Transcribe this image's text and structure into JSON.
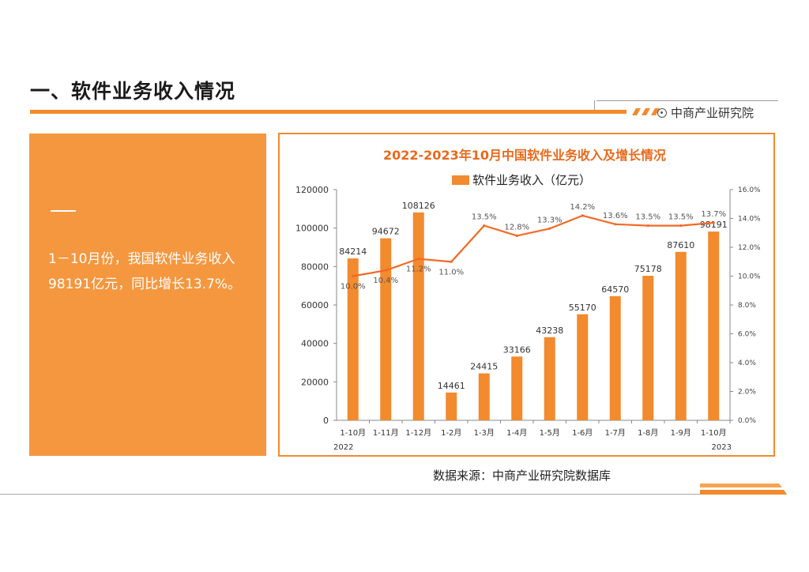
{
  "header": {
    "section_title": "一、软件业务收入情况",
    "brand_name": "中商产业研究院"
  },
  "summary": {
    "text": "1－10月份，我国软件业务收入98191亿元，同比增长13.7%。"
  },
  "source": {
    "text": "数据来源：中商产业研究院数据库"
  },
  "colors": {
    "accent": "#f28a2e",
    "panel": "#f5973f",
    "bar": "#f28a2e",
    "line": "#f26a25",
    "title": "#e86a1c"
  },
  "chart_data": {
    "type": "bar",
    "title": "2022-2023年10月中国软件业务收入及增长情况",
    "categories": [
      "1-10月",
      "1-11月",
      "1-12月",
      "1-2月",
      "1-3月",
      "1-4月",
      "1-5月",
      "1-6月",
      "1-7月",
      "1-8月",
      "1-9月",
      "1-10月"
    ],
    "year_labels": [
      "2022",
      "2023"
    ],
    "series": [
      {
        "name": "软件业务收入（亿元）",
        "type": "bar",
        "axis": "left",
        "values": [
          84214,
          94672,
          108126,
          14461,
          24415,
          33166,
          43238,
          55170,
          64570,
          75178,
          87610,
          98191
        ],
        "labels": [
          "84214",
          "94672",
          "108126",
          "14461",
          "24415",
          "33166",
          "43238",
          "55170",
          "64570",
          "75178",
          "87610",
          "98191"
        ]
      },
      {
        "name": "同比增长",
        "type": "line",
        "axis": "right",
        "values": [
          10.0,
          10.4,
          11.2,
          11.0,
          13.5,
          12.8,
          13.3,
          14.2,
          13.6,
          13.5,
          13.5,
          13.7
        ],
        "labels": [
          "10.0%",
          "10.4%",
          "11.2%",
          "11.0%",
          "13.5%",
          "12.8%",
          "13.3%",
          "14.2%",
          "13.6%",
          "13.5%",
          "13.5%",
          "13.7%"
        ]
      }
    ],
    "y_left": {
      "min": 0,
      "max": 120000,
      "ticks": [
        "0",
        "20000",
        "40000",
        "60000",
        "80000",
        "100000",
        "120000"
      ]
    },
    "y_right": {
      "min": 0,
      "max": 16,
      "ticks": [
        "0.0%",
        "2.0%",
        "4.0%",
        "6.0%",
        "8.0%",
        "10.0%",
        "12.0%",
        "14.0%",
        "16.0%"
      ]
    },
    "legend": {
      "label": "软件业务收入（亿元）",
      "position": "top-center"
    },
    "grid": false
  }
}
